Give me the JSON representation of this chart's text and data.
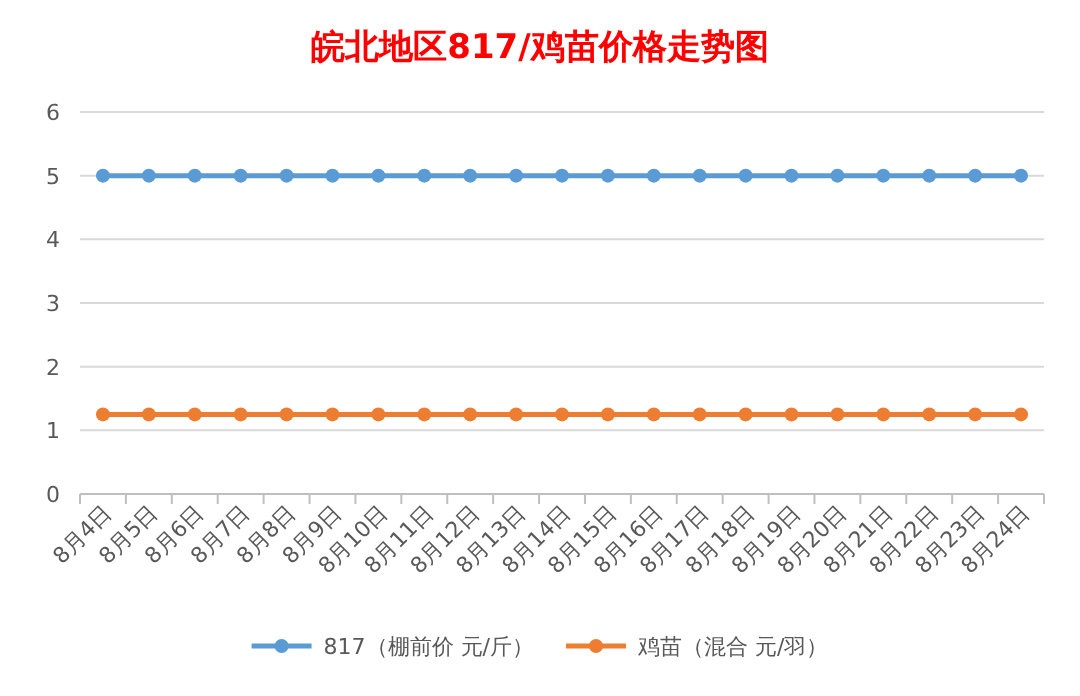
{
  "chart_data": {
    "type": "line",
    "title": "皖北地区817/鸡苗价格走势图",
    "categories": [
      "8月4日",
      "8月5日",
      "8月6日",
      "8月7日",
      "8月8日",
      "8月9日",
      "8月10日",
      "8月11日",
      "8月12日",
      "8月13日",
      "8月14日",
      "8月15日",
      "8月16日",
      "8月17日",
      "8月18日",
      "8月19日",
      "8月20日",
      "8月21日",
      "8月22日",
      "8月23日",
      "8月24日"
    ],
    "series": [
      {
        "name": "817（棚前价 元/斤）",
        "color": "#5b9bd5",
        "values": [
          5,
          5,
          5,
          5,
          5,
          5,
          5,
          5,
          5,
          5,
          5,
          5,
          5,
          5,
          5,
          5,
          5,
          5,
          5,
          5,
          5
        ]
      },
      {
        "name": "鸡苗（混合 元/羽）",
        "color": "#ed7d31",
        "values": [
          1.25,
          1.25,
          1.25,
          1.25,
          1.25,
          1.25,
          1.25,
          1.25,
          1.25,
          1.25,
          1.25,
          1.25,
          1.25,
          1.25,
          1.25,
          1.25,
          1.25,
          1.25,
          1.25,
          1.25,
          1.25
        ]
      }
    ],
    "ylim": [
      0,
      6
    ],
    "yticks": [
      0,
      1,
      2,
      3,
      4,
      5,
      6
    ],
    "grid": "y",
    "legend": "bottom",
    "marker": "circle",
    "line_style": "solid"
  }
}
